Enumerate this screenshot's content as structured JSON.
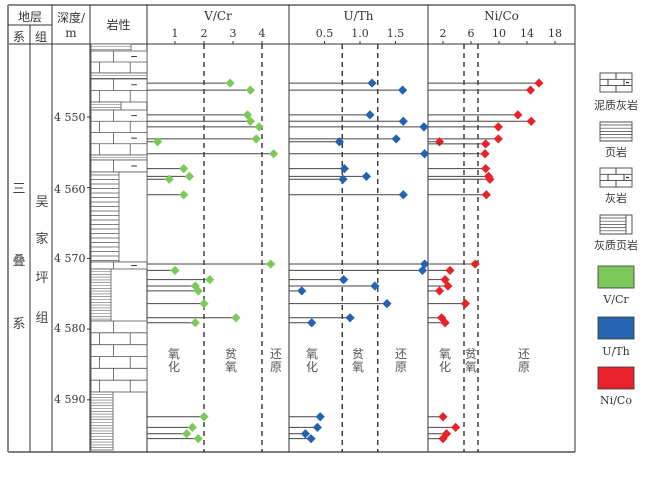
{
  "header": {
    "strata": "地层",
    "system": "系",
    "formation": "组",
    "depth_line1": "深度/",
    "depth_line2": "m",
    "lithology": "岩性"
  },
  "stratigraphy": {
    "system_name": [
      "三",
      "叠",
      "系"
    ],
    "formation_name": [
      "吴",
      "家",
      "坪",
      "组"
    ]
  },
  "depth_ticks": [
    "4 550",
    "4 560",
    "4 570",
    "4 580",
    "4 590"
  ],
  "zones": {
    "oxic": [
      "氧",
      "化"
    ],
    "dysoxic": [
      "贫",
      "氧"
    ],
    "anoxic": [
      "还",
      "原"
    ]
  },
  "legend": {
    "items": [
      {
        "label": "泥质灰岩",
        "pattern": "muddy-limestone"
      },
      {
        "label": "页岩",
        "pattern": "shale"
      },
      {
        "label": "灰岩",
        "pattern": "limestone"
      },
      {
        "label": "灰质页岩",
        "pattern": "calcareous-shale"
      },
      {
        "label": "V/Cr",
        "color": "#7dc85a"
      },
      {
        "label": "U/Th",
        "color": "#2563b0"
      },
      {
        "label": "Ni/Co",
        "color": "#e8212a"
      }
    ]
  },
  "chart_data": [
    {
      "type": "scatter",
      "title": "V/Cr",
      "ylabel": "深度/m",
      "ylim": [
        4540.5,
        4598.5
      ],
      "xlim": [
        0,
        4.95
      ],
      "xticks": [
        1,
        2,
        3,
        4
      ],
      "xtick_labels": [
        "1",
        "2",
        "3",
        "4"
      ],
      "thresholds": [
        2,
        4
      ],
      "color": "#7dc85a",
      "points": [
        {
          "depth": 4545.2,
          "value": 2.9
        },
        {
          "depth": 4546.2,
          "value": 3.6
        },
        {
          "depth": 4549.7,
          "value": 3.5
        },
        {
          "depth": 4550.6,
          "value": 3.6
        },
        {
          "depth": 4551.4,
          "value": 3.9
        },
        {
          "depth": 4553.1,
          "value": 3.8
        },
        {
          "depth": 4553.5,
          "value": 0.4
        },
        {
          "depth": 4555.2,
          "value": 4.4
        },
        {
          "depth": 4557.3,
          "value": 1.3
        },
        {
          "depth": 4558.4,
          "value": 1.5
        },
        {
          "depth": 4558.8,
          "value": 0.8
        },
        {
          "depth": 4561.0,
          "value": 1.3
        },
        {
          "depth": 4570.8,
          "value": 4.3
        },
        {
          "depth": 4571.7,
          "value": 1.0
        },
        {
          "depth": 4573.0,
          "value": 2.2
        },
        {
          "depth": 4573.9,
          "value": 1.7
        },
        {
          "depth": 4574.6,
          "value": 1.8
        },
        {
          "depth": 4576.4,
          "value": 2.0
        },
        {
          "depth": 4578.4,
          "value": 3.1
        },
        {
          "depth": 4579.1,
          "value": 1.7
        },
        {
          "depth": 4592.4,
          "value": 2.0
        },
        {
          "depth": 4593.9,
          "value": 1.6
        },
        {
          "depth": 4594.8,
          "value": 1.4
        },
        {
          "depth": 4595.5,
          "value": 1.8
        }
      ]
    },
    {
      "type": "scatter",
      "title": "U/Th",
      "ylim": [
        4540.5,
        4598.5
      ],
      "xlim": [
        0,
        1.97
      ],
      "xticks": [
        0.5,
        1.0,
        1.5
      ],
      "xtick_labels": [
        "0.5",
        "1.0",
        "1.5"
      ],
      "thresholds": [
        0.75,
        1.25
      ],
      "color": "#2563b0",
      "points": [
        {
          "depth": 4545.2,
          "value": 1.17
        },
        {
          "depth": 4546.2,
          "value": 1.6
        },
        {
          "depth": 4549.7,
          "value": 1.14
        },
        {
          "depth": 4550.6,
          "value": 1.61
        },
        {
          "depth": 4551.4,
          "value": 1.9
        },
        {
          "depth": 4553.1,
          "value": 1.51
        },
        {
          "depth": 4553.5,
          "value": 0.71
        },
        {
          "depth": 4555.2,
          "value": 1.91
        },
        {
          "depth": 4557.3,
          "value": 0.78
        },
        {
          "depth": 4558.4,
          "value": 1.09
        },
        {
          "depth": 4558.8,
          "value": 0.76
        },
        {
          "depth": 4561.0,
          "value": 1.61
        },
        {
          "depth": 4570.8,
          "value": 1.91
        },
        {
          "depth": 4571.7,
          "value": 1.88
        },
        {
          "depth": 4573.0,
          "value": 0.77
        },
        {
          "depth": 4573.9,
          "value": 1.21
        },
        {
          "depth": 4574.6,
          "value": 0.18
        },
        {
          "depth": 4576.4,
          "value": 1.38
        },
        {
          "depth": 4578.4,
          "value": 0.86
        },
        {
          "depth": 4579.1,
          "value": 0.32
        },
        {
          "depth": 4592.4,
          "value": 0.44
        },
        {
          "depth": 4593.9,
          "value": 0.4
        },
        {
          "depth": 4594.8,
          "value": 0.23
        },
        {
          "depth": 4595.5,
          "value": 0.31
        }
      ]
    },
    {
      "type": "scatter",
      "title": "Ni/Co",
      "ylim": [
        4540.5,
        4598.5
      ],
      "xlim": [
        0,
        19.8
      ],
      "xticks": [
        2,
        6,
        10,
        14,
        18
      ],
      "xtick_labels": [
        "2",
        "6",
        "10",
        "14",
        "18"
      ],
      "thresholds": [
        5,
        7
      ],
      "color": "#e8212a",
      "points": [
        {
          "depth": 4545.2,
          "value": 15.7
        },
        {
          "depth": 4546.2,
          "value": 14.5
        },
        {
          "depth": 4549.7,
          "value": 12.7
        },
        {
          "depth": 4550.6,
          "value": 14.6
        },
        {
          "depth": 4551.4,
          "value": 9.9
        },
        {
          "depth": 4553.1,
          "value": 9.9
        },
        {
          "depth": 4553.5,
          "value": 1.5
        },
        {
          "depth": 4553.8,
          "value": 8.1
        },
        {
          "depth": 4555.2,
          "value": 8.0
        },
        {
          "depth": 4557.3,
          "value": 8.1
        },
        {
          "depth": 4558.4,
          "value": 8.5
        },
        {
          "depth": 4558.8,
          "value": 8.7
        },
        {
          "depth": 4561.0,
          "value": 8.2
        },
        {
          "depth": 4570.8,
          "value": 6.6
        },
        {
          "depth": 4571.7,
          "value": 3.0
        },
        {
          "depth": 4573.0,
          "value": 2.3
        },
        {
          "depth": 4573.9,
          "value": 2.7
        },
        {
          "depth": 4574.6,
          "value": 1.5
        },
        {
          "depth": 4576.4,
          "value": 5.2
        },
        {
          "depth": 4578.4,
          "value": 1.8
        },
        {
          "depth": 4579.1,
          "value": 2.3
        },
        {
          "depth": 4592.4,
          "value": 2.0
        },
        {
          "depth": 4593.9,
          "value": 3.8
        },
        {
          "depth": 4594.8,
          "value": 2.5
        },
        {
          "depth": 4595.5,
          "value": 2.0
        }
      ]
    }
  ]
}
